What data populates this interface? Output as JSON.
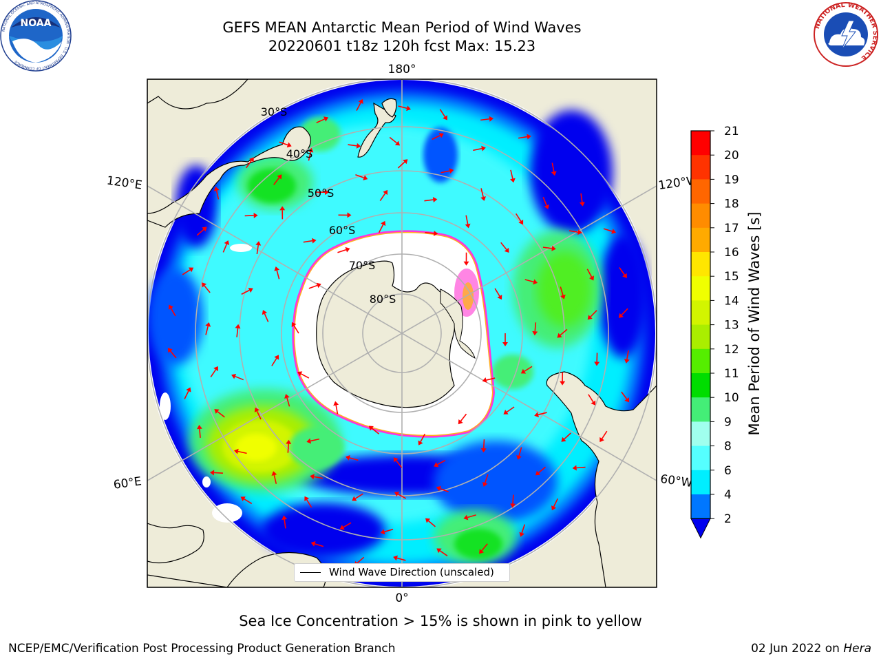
{
  "header": {
    "title_line1": "GEFS MEAN Antarctic Mean Period of Wind Waves",
    "title_line2": "20220601 t18z 120h fcst   Max: 15.23"
  },
  "logos": {
    "left_icon": "noaa-logo",
    "left_text": "NOAA",
    "left_ring_text": "NATIONAL OCEANIC AND ATMOSPHERIC ADMINISTRATION · U.S. DEPARTMENT OF COMMERCE",
    "right_icon": "national-weather-service-logo",
    "right_ring_text": "NATIONAL WEATHER SERVICE"
  },
  "map": {
    "projection": "south-polar-stereographic",
    "longitude_labels": {
      "top": "180°",
      "bottom": "0°",
      "upper_left": "120°E",
      "lower_left": "60°E",
      "upper_right": "120°W",
      "lower_right": "60°W"
    },
    "latitude_labels": [
      "30°S",
      "40°S",
      "50°S",
      "60°S",
      "70°S",
      "80°S"
    ],
    "colors": {
      "land": "#eeecd9",
      "sea_ice": "#ffffff",
      "ice_edge": "#ff33dd",
      "ice_edge_inner": "#ffb020",
      "arrows": "#ff0000",
      "gridlines": "#b0b0b0"
    },
    "legend_label": "Wind Wave Direction (unscaled)"
  },
  "colorbar": {
    "label": "Mean Period of Wind Waves [s]",
    "ticks": [
      "21",
      "20",
      "19",
      "18",
      "17",
      "16",
      "15",
      "14",
      "13",
      "12",
      "11",
      "10",
      "9",
      "8",
      "6",
      "4",
      "2"
    ],
    "bins": [
      {
        "range": "20-21",
        "color": "#ff0000"
      },
      {
        "range": "19-20",
        "color": "#ff3300"
      },
      {
        "range": "18-19",
        "color": "#ff6600"
      },
      {
        "range": "17-18",
        "color": "#ff8c00"
      },
      {
        "range": "16-17",
        "color": "#ffaa00"
      },
      {
        "range": "15-16",
        "color": "#ffe600"
      },
      {
        "range": "14-15",
        "color": "#f0ff00"
      },
      {
        "range": "13-14",
        "color": "#d2f500"
      },
      {
        "range": "12-13",
        "color": "#aaee00"
      },
      {
        "range": "11-12",
        "color": "#55ee00"
      },
      {
        "range": "10-11",
        "color": "#00dd00"
      },
      {
        "range": "9-10",
        "color": "#44ee77"
      },
      {
        "range": "8-9",
        "color": "#a0ffee"
      },
      {
        "range": "6-8",
        "color": "#55ffff"
      },
      {
        "range": "4-6",
        "color": "#00eeff"
      },
      {
        "range": "2-4",
        "color": "#0077ff"
      },
      {
        "range": "<2",
        "color": "#0000ee"
      }
    ]
  },
  "note": "Sea Ice Concentration > 15% is shown in pink to yellow",
  "footer": {
    "left": "NCEP/EMC/Verification Post Processing Product Generation Branch",
    "right_date": "02 Jun 2022 on ",
    "right_host": "Hera"
  }
}
